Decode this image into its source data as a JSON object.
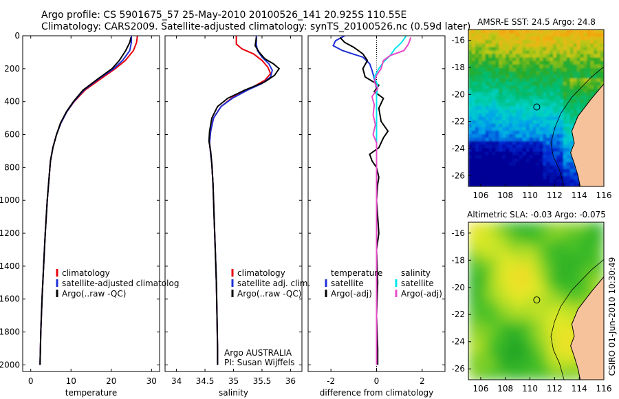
{
  "title_line1": "Argo profile: CS 5901675_57 25-May-2010 20100526_141 20.925S 110.55E",
  "title_line2": "Climatology: CARS2009. Satellite-adjusted climatology: synTS_20100526.nc (0.59d later)",
  "side_label": "CSIRO 01-Jun-2010 10:30:49",
  "chart_data": [
    {
      "type": "line",
      "xlabel": "temperature",
      "xlim": [
        -2,
        32
      ],
      "xticks": [
        0,
        10,
        20,
        30
      ],
      "ylim": [
        2040,
        0
      ],
      "yticks": [
        0,
        200,
        400,
        600,
        800,
        1000,
        1200,
        1400,
        1600,
        1800,
        2000
      ],
      "legend": [
        "climatology",
        "satellite-adjusted climatolog",
        "Argo(..raw -QC)"
      ],
      "series": [
        {
          "name": "climatology",
          "color": "#e8000b",
          "points": [
            [
              26.5,
              0
            ],
            [
              26.3,
              40
            ],
            [
              25.5,
              90
            ],
            [
              23.5,
              150
            ],
            [
              21.0,
              200
            ],
            [
              17.5,
              260
            ],
            [
              13.5,
              330
            ],
            [
              10.8,
              400
            ],
            [
              9.0,
              460
            ],
            [
              7.5,
              530
            ],
            [
              6.4,
              600
            ],
            [
              5.5,
              680
            ],
            [
              4.9,
              760
            ],
            [
              4.6,
              850
            ],
            [
              4.1,
              1000
            ],
            [
              3.6,
              1200
            ],
            [
              3.2,
              1400
            ],
            [
              2.8,
              1600
            ],
            [
              2.5,
              1800
            ],
            [
              2.3,
              2000
            ]
          ]
        },
        {
          "name": "satellite-adjusted climatolog",
          "color": "#1f2fd6",
          "points": [
            [
              25.0,
              0
            ],
            [
              25.0,
              40
            ],
            [
              24.6,
              90
            ],
            [
              22.8,
              150
            ],
            [
              20.6,
              200
            ],
            [
              17.0,
              260
            ],
            [
              13.2,
              330
            ],
            [
              10.7,
              400
            ],
            [
              9.0,
              460
            ],
            [
              7.5,
              530
            ],
            [
              6.4,
              600
            ],
            [
              5.5,
              680
            ],
            [
              4.9,
              760
            ],
            [
              4.6,
              850
            ],
            [
              4.1,
              1000
            ],
            [
              3.6,
              1200
            ],
            [
              3.2,
              1400
            ],
            [
              2.8,
              1600
            ],
            [
              2.5,
              1800
            ],
            [
              2.3,
              2000
            ]
          ]
        },
        {
          "name": "Argo(..raw -QC)",
          "color": "#000000",
          "points": [
            [
              24.9,
              10
            ],
            [
              24.6,
              40
            ],
            [
              23.6,
              90
            ],
            [
              22.0,
              150
            ],
            [
              20.2,
              200
            ],
            [
              16.8,
              260
            ],
            [
              13.0,
              330
            ],
            [
              10.6,
              400
            ],
            [
              8.9,
              460
            ],
            [
              7.4,
              530
            ],
            [
              6.4,
              600
            ],
            [
              5.5,
              680
            ],
            [
              4.9,
              760
            ],
            [
              4.6,
              850
            ],
            [
              4.1,
              1000
            ],
            [
              3.6,
              1200
            ],
            [
              3.2,
              1400
            ],
            [
              2.8,
              1600
            ],
            [
              2.5,
              1800
            ],
            [
              2.3,
              2000
            ]
          ]
        }
      ]
    },
    {
      "type": "line",
      "xlabel": "salinity",
      "xlim": [
        33.8,
        36.2
      ],
      "xticks": [
        34,
        34.5,
        35,
        35.5,
        36
      ],
      "ylim": [
        2040,
        0
      ],
      "legend": [
        "climatology",
        "satellite adj. clim.",
        "Argo(..raw -QC)"
      ],
      "annotation": [
        "Argo AUSTRALIA",
        "PI: Susan Wijffels"
      ],
      "series": [
        {
          "name": "climatology",
          "color": "#e8000b",
          "points": [
            [
              35.05,
              0
            ],
            [
              35.05,
              50
            ],
            [
              35.15,
              80
            ],
            [
              35.35,
              110
            ],
            [
              35.5,
              150
            ],
            [
              35.6,
              190
            ],
            [
              35.65,
              230
            ],
            [
              35.55,
              270
            ],
            [
              35.3,
              320
            ],
            [
              35.0,
              370
            ],
            [
              34.78,
              430
            ],
            [
              34.65,
              500
            ],
            [
              34.6,
              580
            ],
            [
              34.58,
              650
            ],
            [
              34.6,
              720
            ],
            [
              34.62,
              780
            ],
            [
              34.64,
              900
            ],
            [
              34.66,
              1100
            ],
            [
              34.68,
              1300
            ],
            [
              34.7,
              1500
            ],
            [
              34.71,
              1700
            ],
            [
              34.72,
              1900
            ],
            [
              34.72,
              2000
            ]
          ]
        },
        {
          "name": "satellite adj. clim.",
          "color": "#1f2fd6",
          "points": [
            [
              35.4,
              0
            ],
            [
              35.4,
              50
            ],
            [
              35.42,
              90
            ],
            [
              35.5,
              130
            ],
            [
              35.62,
              170
            ],
            [
              35.68,
              210
            ],
            [
              35.65,
              250
            ],
            [
              35.5,
              290
            ],
            [
              35.25,
              330
            ],
            [
              34.98,
              380
            ],
            [
              34.78,
              430
            ],
            [
              34.65,
              500
            ],
            [
              34.6,
              580
            ],
            [
              34.58,
              650
            ],
            [
              34.6,
              720
            ],
            [
              34.62,
              780
            ],
            [
              34.64,
              900
            ],
            [
              34.66,
              1100
            ],
            [
              34.68,
              1300
            ],
            [
              34.7,
              1500
            ],
            [
              34.71,
              1700
            ],
            [
              34.72,
              1900
            ],
            [
              34.72,
              2000
            ]
          ]
        },
        {
          "name": "Argo(..raw -QC)",
          "color": "#000000",
          "points": [
            [
              35.4,
              10
            ],
            [
              35.38,
              60
            ],
            [
              35.45,
              100
            ],
            [
              35.55,
              140
            ],
            [
              35.7,
              170
            ],
            [
              35.8,
              200
            ],
            [
              35.72,
              240
            ],
            [
              35.55,
              280
            ],
            [
              35.2,
              330
            ],
            [
              34.9,
              380
            ],
            [
              34.72,
              430
            ],
            [
              34.62,
              500
            ],
            [
              34.58,
              580
            ],
            [
              34.57,
              640
            ],
            [
              34.6,
              700
            ],
            [
              34.62,
              780
            ],
            [
              34.64,
              900
            ],
            [
              34.66,
              1100
            ],
            [
              34.68,
              1300
            ],
            [
              34.7,
              1500
            ],
            [
              34.71,
              1700
            ],
            [
              34.72,
              1900
            ],
            [
              34.72,
              2000
            ]
          ]
        }
      ]
    },
    {
      "type": "line",
      "xlabel": "difference from climatology",
      "xlim": [
        -3,
        3
      ],
      "xticks": [
        -2,
        0,
        2
      ],
      "ylim": [
        2040,
        0
      ],
      "legend_left_title": "temperature",
      "legend_right_title": "salinity",
      "legend_left": [
        "satellite",
        "Argo(-adj)"
      ],
      "legend_right": [
        "satellite",
        "Argo(-adj)"
      ],
      "series": [
        {
          "name": "temperature satellite",
          "color": "#1f2fd6",
          "points": [
            [
              -1.4,
              0
            ],
            [
              -1.8,
              30
            ],
            [
              -1.9,
              60
            ],
            [
              -1.5,
              90
            ],
            [
              -0.6,
              130
            ],
            [
              -0.3,
              170
            ],
            [
              -0.2,
              210
            ],
            [
              -0.1,
              260
            ],
            [
              0.0,
              320
            ],
            [
              0.0,
              400
            ],
            [
              0.0,
              600
            ],
            [
              0.0,
              1000
            ],
            [
              0.0,
              1500
            ],
            [
              0.0,
              2000
            ]
          ]
        },
        {
          "name": "temperature Argo(-adj)",
          "color": "#000000",
          "points": [
            [
              -1.6,
              10
            ],
            [
              -1.4,
              40
            ],
            [
              -1.0,
              70
            ],
            [
              -0.6,
              110
            ],
            [
              -0.4,
              150
            ],
            [
              -0.6,
              200
            ],
            [
              -0.5,
              250
            ],
            [
              0.1,
              300
            ],
            [
              -0.1,
              340
            ],
            [
              0.3,
              380
            ],
            [
              0.1,
              440
            ],
            [
              0.2,
              520
            ],
            [
              0.5,
              580
            ],
            [
              0.3,
              620
            ],
            [
              0.1,
              680
            ],
            [
              -0.3,
              720
            ],
            [
              -0.2,
              760
            ],
            [
              0.0,
              800
            ],
            [
              0.1,
              860
            ],
            [
              0.05,
              900
            ],
            [
              0.0,
              1000
            ],
            [
              0.05,
              1100
            ],
            [
              0.1,
              1200
            ],
            [
              0.0,
              1300
            ],
            [
              0.05,
              1500
            ],
            [
              0.0,
              1700
            ],
            [
              0.05,
              1900
            ],
            [
              0.05,
              2000
            ]
          ]
        },
        {
          "name": "salinity satellite",
          "color": "#00e5ee",
          "points": [
            [
              1.3,
              0
            ],
            [
              1.1,
              40
            ],
            [
              0.8,
              80
            ],
            [
              0.6,
              120
            ],
            [
              0.3,
              160
            ],
            [
              0.1,
              200
            ],
            [
              -0.1,
              250
            ],
            [
              0.05,
              300
            ],
            [
              0.0,
              360
            ],
            [
              0.0,
              420
            ],
            [
              0.0,
              600
            ],
            [
              0.0,
              1000
            ],
            [
              0.0,
              1500
            ],
            [
              0.0,
              2000
            ]
          ]
        },
        {
          "name": "salinity Argo(-adj)",
          "color": "#e64ac8",
          "points": [
            [
              1.5,
              10
            ],
            [
              1.4,
              50
            ],
            [
              1.2,
              90
            ],
            [
              0.6,
              120
            ],
            [
              0.3,
              150
            ],
            [
              0.2,
              200
            ],
            [
              0.0,
              240
            ],
            [
              -0.1,
              280
            ],
            [
              0.05,
              320
            ],
            [
              -0.2,
              370
            ],
            [
              -0.1,
              420
            ],
            [
              -0.15,
              480
            ],
            [
              -0.05,
              540
            ],
            [
              -0.15,
              600
            ],
            [
              0.0,
              650
            ],
            [
              0.0,
              700
            ],
            [
              0.0,
              800
            ],
            [
              0.0,
              1000
            ],
            [
              0.0,
              1500
            ],
            [
              0.0,
              2000
            ]
          ]
        }
      ]
    },
    {
      "type": "heatmap",
      "title": "AMSR-E SST: 24.5 Argo: 24.8",
      "xlim": [
        105,
        116
      ],
      "ylim": [
        -26.8,
        -15.2
      ],
      "xticks": [
        106,
        108,
        110,
        112,
        114,
        116
      ],
      "yticks": [
        -16,
        -18,
        -20,
        -22,
        -24,
        -26
      ],
      "marker": [
        110.55,
        -20.925
      ]
    },
    {
      "type": "heatmap",
      "title": "Altimetric SLA: -0.03 Argo: -0.075",
      "xlim": [
        105,
        116
      ],
      "ylim": [
        -26.8,
        -15.2
      ],
      "xticks": [
        106,
        108,
        110,
        112,
        114,
        116
      ],
      "yticks": [
        -16,
        -18,
        -20,
        -22,
        -24,
        -26
      ],
      "marker": [
        110.55,
        -20.925
      ]
    }
  ]
}
